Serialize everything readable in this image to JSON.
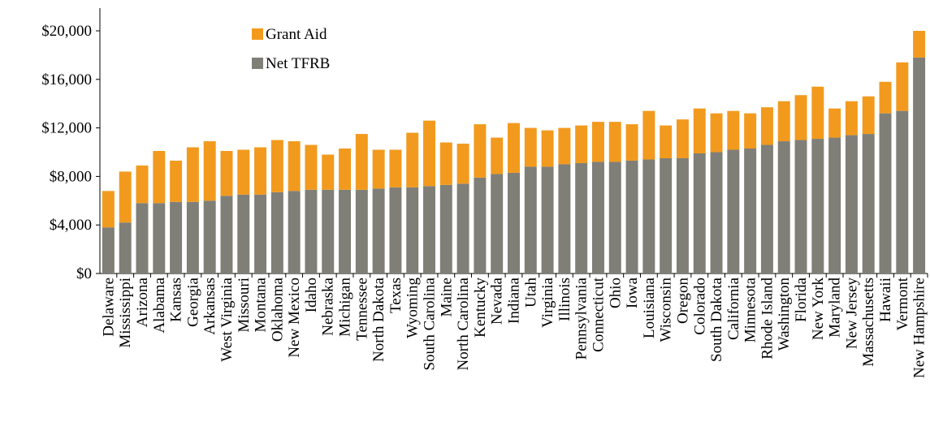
{
  "chart_data": {
    "type": "stacked_bar",
    "categories": [
      "Delaware",
      "Mississippi",
      "Arizona",
      "Alabama",
      "Kansas",
      "Georgia",
      "Arkansas",
      "West Virginia",
      "Missouri",
      "Montana",
      "Oklahoma",
      "New Mexico",
      "Idaho",
      "Nebraska",
      "Michigan",
      "Tennessee",
      "North Dakota",
      "Texas",
      "Wyoming",
      "South Carolina",
      "Maine",
      "North Carolina",
      "Kentucky",
      "Nevada",
      "Indiana",
      "Utah",
      "Virginia",
      "Illinois",
      "Pennsylvania",
      "Connecticut",
      "Ohio",
      "Iowa",
      "Louisiana",
      "Wisconsin",
      "Oregon",
      "Colorado",
      "South Dakota",
      "California",
      "Minnesota",
      "Rhode Island",
      "Washington",
      "Florida",
      "New York",
      "Maryland",
      "New Jersey",
      "Massachusetts",
      "Hawaii",
      "Vermont",
      "New Hampshire"
    ],
    "series": [
      {
        "name": "Net TFRB",
        "color": "#7f7f78",
        "values": [
          3800,
          4200,
          5800,
          5800,
          5900,
          5900,
          6000,
          6400,
          6500,
          6500,
          6700,
          6800,
          6900,
          6900,
          6900,
          6900,
          7000,
          7100,
          7100,
          7200,
          7300,
          7400,
          7900,
          8200,
          8300,
          8800,
          8800,
          9000,
          9100,
          9200,
          9200,
          9300,
          9400,
          9500,
          9500,
          9900,
          10000,
          10200,
          10300,
          10600,
          10900,
          11000,
          11100,
          11200,
          11400,
          11500,
          13200,
          13400,
          17800
        ]
      },
      {
        "name": "Grant Aid",
        "color": "#f29a1e",
        "values": [
          3000,
          4200,
          3100,
          4300,
          3400,
          4500,
          4900,
          3700,
          3700,
          3900,
          4300,
          4100,
          3700,
          2900,
          3400,
          4600,
          3200,
          3100,
          4500,
          5400,
          3500,
          3300,
          4400,
          3000,
          4100,
          3200,
          3000,
          3000,
          3100,
          3300,
          3300,
          3000,
          4000,
          2700,
          3200,
          3700,
          3200,
          3200,
          2900,
          3100,
          3300,
          3700,
          4300,
          2400,
          2800,
          3100,
          2600,
          4000,
          2200
        ]
      }
    ],
    "ylim": [
      0,
      20000
    ],
    "yticks": [
      {
        "value": 0,
        "label": "$0"
      },
      {
        "value": 4000,
        "label": "$4,000"
      },
      {
        "value": 8000,
        "label": "$8,000"
      },
      {
        "value": 12000,
        "label": "$12,000"
      },
      {
        "value": 16000,
        "label": "$16,000"
      },
      {
        "value": 20000,
        "label": "$20,000"
      }
    ],
    "grid": false
  }
}
